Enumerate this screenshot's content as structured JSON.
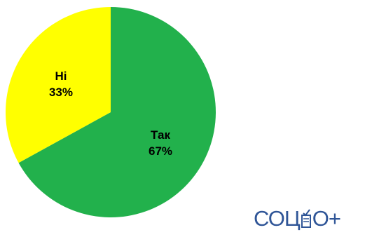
{
  "chart_data": {
    "type": "pie",
    "slices": [
      {
        "label": "Так",
        "value": 67,
        "value_label": "67%",
        "color": "#22b14c"
      },
      {
        "label": "Ні",
        "value": 33,
        "value_label": "33%",
        "color": "#ffff00"
      }
    ],
    "start": "12 o'clock",
    "direction": "clockwise"
  },
  "logo": {
    "text_left": "СОЦ",
    "text_right": "О+",
    "color": "#2f5597"
  }
}
